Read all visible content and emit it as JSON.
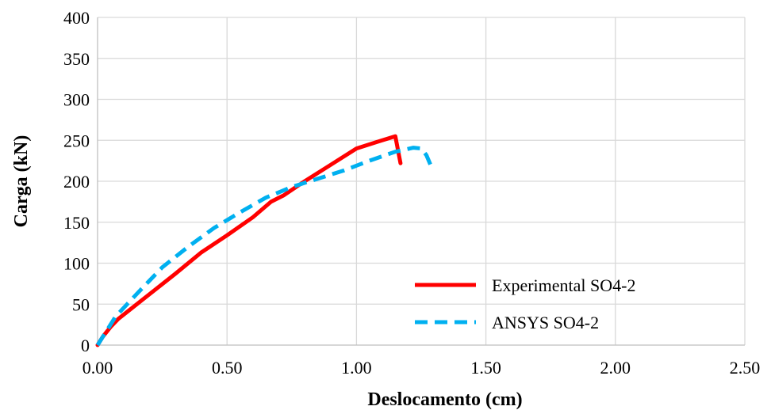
{
  "chart_data": {
    "type": "line",
    "title": "",
    "xlabel": "Deslocamento (cm)",
    "ylabel": "Carga (kN)",
    "xlim": [
      0,
      2.5
    ],
    "ylim": [
      0,
      400
    ],
    "x_ticks": [
      0,
      0.5,
      1.0,
      1.5,
      2.0,
      2.5
    ],
    "x_tick_labels": [
      "0.00",
      "0.50",
      "1.00",
      "1.50",
      "2.00",
      "2.50"
    ],
    "y_ticks": [
      0,
      50,
      100,
      150,
      200,
      250,
      300,
      350,
      400
    ],
    "y_tick_labels": [
      "0",
      "50",
      "100",
      "150",
      "200",
      "250",
      "300",
      "350",
      "400"
    ],
    "grid": "vertical-and-horizontal",
    "legend_position": "bottom-right",
    "series": [
      {
        "name": "Experimental SO4-2",
        "color": "#ff0000",
        "style": "solid",
        "points": [
          [
            0.0,
            0
          ],
          [
            0.02,
            10
          ],
          [
            0.05,
            22
          ],
          [
            0.08,
            32
          ],
          [
            0.12,
            42
          ],
          [
            0.2,
            62
          ],
          [
            0.3,
            87
          ],
          [
            0.4,
            113
          ],
          [
            0.5,
            134
          ],
          [
            0.6,
            156
          ],
          [
            0.67,
            175
          ],
          [
            0.72,
            183
          ],
          [
            0.8,
            200
          ],
          [
            0.9,
            220
          ],
          [
            1.0,
            240
          ],
          [
            1.08,
            248
          ],
          [
            1.15,
            255
          ],
          [
            1.17,
            222
          ]
        ]
      },
      {
        "name": "ANSYS SO4-2",
        "color": "#00b0f0",
        "style": "dashed",
        "points": [
          [
            0.0,
            0
          ],
          [
            0.03,
            15
          ],
          [
            0.07,
            35
          ],
          [
            0.15,
            62
          ],
          [
            0.25,
            95
          ],
          [
            0.35,
            120
          ],
          [
            0.45,
            143
          ],
          [
            0.55,
            162
          ],
          [
            0.65,
            180
          ],
          [
            0.75,
            193
          ],
          [
            0.85,
            203
          ],
          [
            0.95,
            213
          ],
          [
            1.05,
            225
          ],
          [
            1.15,
            236
          ],
          [
            1.22,
            241
          ],
          [
            1.25,
            240
          ],
          [
            1.27,
            232
          ],
          [
            1.29,
            217
          ]
        ]
      }
    ]
  }
}
